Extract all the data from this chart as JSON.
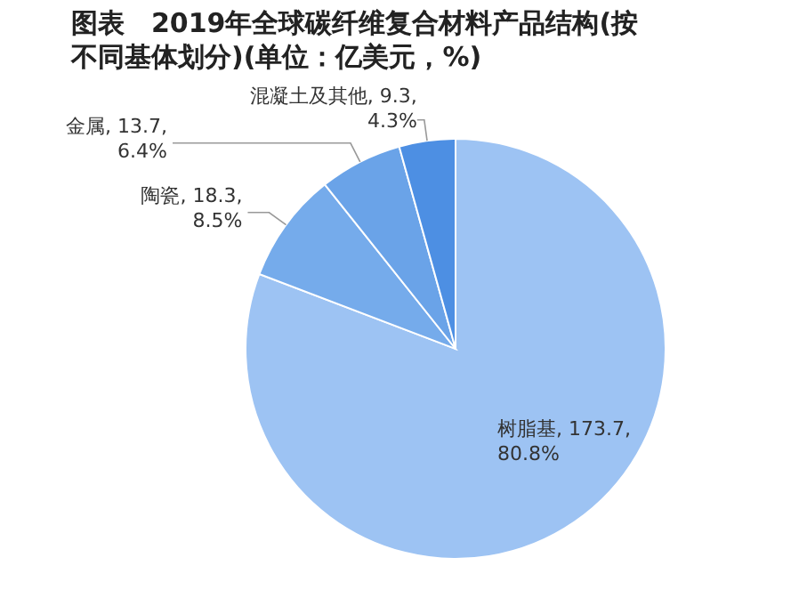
{
  "chart_data": {
    "type": "pie",
    "title": "图表　2019年全球碳纤维复合材料产品结构(按不同基体划分)(单位：亿美元，%)",
    "categories": [
      "树脂基",
      "陶瓷",
      "金属",
      "混凝土及其他"
    ],
    "values": [
      173.7,
      18.3,
      13.7,
      9.3
    ],
    "value_labels": [
      ", 173.7, 80.8%",
      ", 18.3, 8.5%",
      ", 13.7, 6.4%",
      ", 9.3, 4.3%"
    ],
    "colors": [
      "#9dc3f3",
      "#75abeb",
      "#6aa3e8",
      "#4d8fe3"
    ],
    "legend": false
  }
}
